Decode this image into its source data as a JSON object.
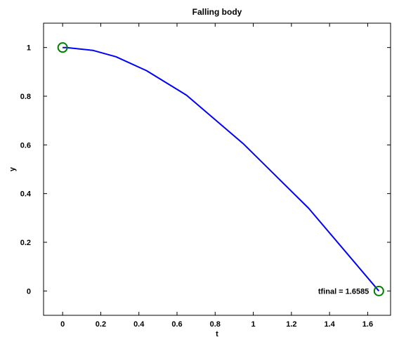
{
  "chart_data": {
    "type": "line",
    "title": "Falling body",
    "xlabel": "t",
    "ylabel": "y",
    "xlim": [
      -0.1,
      1.72
    ],
    "ylim": [
      -0.1,
      1.1
    ],
    "grid": false,
    "x_ticks": [
      0,
      0.2,
      0.4,
      0.6,
      0.8,
      1,
      1.2,
      1.4,
      1.6
    ],
    "x_tick_labels": [
      "0",
      "0.2",
      "0.4",
      "0.6",
      "0.8",
      "1",
      "1.2",
      "1.4",
      "1.6"
    ],
    "y_ticks": [
      0,
      0.2,
      0.4,
      0.6,
      0.8,
      1
    ],
    "y_tick_labels": [
      "0",
      "0.2",
      "0.4",
      "0.6",
      "0.8",
      "1"
    ],
    "series": [
      {
        "color": "#0000ff",
        "x": [
          0,
          0.02,
          0.16,
          0.28,
          0.44,
          0.65,
          0.95,
          1.29,
          1.6585
        ],
        "y": [
          1,
          1.0,
          0.988,
          0.962,
          0.905,
          0.804,
          0.603,
          0.34,
          0.0
        ]
      }
    ],
    "markers": [
      {
        "x": 0,
        "y": 1,
        "shape": "circle",
        "color": "#008000"
      },
      {
        "x": 1.6585,
        "y": 0,
        "shape": "circle",
        "color": "#008000"
      }
    ],
    "annotations": [
      {
        "text": "tfinal = 1.6585",
        "x": 1.34,
        "y": 0
      }
    ]
  }
}
